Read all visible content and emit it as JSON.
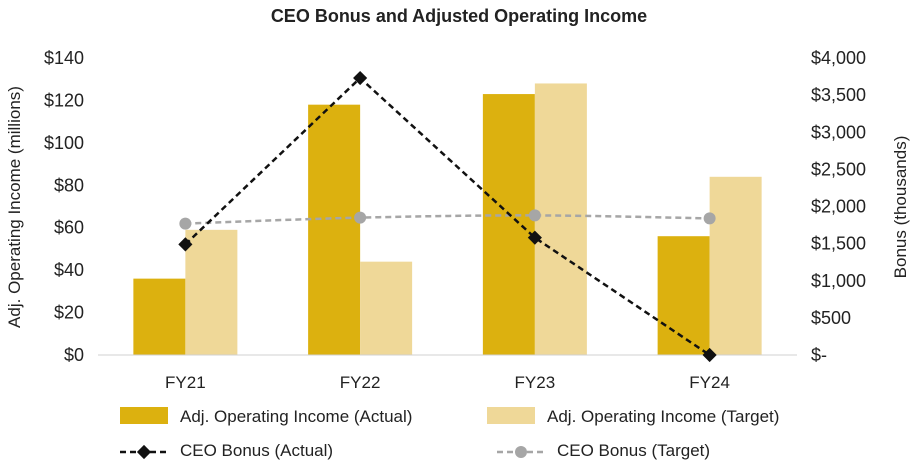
{
  "chart_data": {
    "type": "bar+line",
    "title": "CEO Bonus and Adjusted Operating Income",
    "categories": [
      "FY21",
      "FY22",
      "FY23",
      "FY24"
    ],
    "left_axis": {
      "label": "Adj. Operating Income (millions)",
      "range": [
        0,
        140
      ],
      "ticks": [
        0,
        20,
        40,
        60,
        80,
        100,
        120,
        140
      ],
      "tick_labels": [
        "$0",
        "$20",
        "$40",
        "$60",
        "$80",
        "$100",
        "$120",
        "$140"
      ]
    },
    "right_axis": {
      "label": "Bonus (thousands)",
      "range": [
        0,
        4000
      ],
      "ticks": [
        0,
        500,
        1000,
        1500,
        2000,
        2500,
        3000,
        3500,
        4000
      ],
      "tick_labels": [
        "$-",
        "$500",
        "$1,000",
        "$1,500",
        "$2,000",
        "$2,500",
        "$3,000",
        "$3,500",
        "$4,000"
      ]
    },
    "bar_series": [
      {
        "name": "Adj. Operating Income (Actual)",
        "color": "#DCB10F",
        "values": [
          36,
          118,
          123,
          56
        ]
      },
      {
        "name": "Adj. Operating Income (Target)",
        "color": "#EFD898",
        "values": [
          59,
          44,
          128,
          84
        ]
      }
    ],
    "line_series": [
      {
        "name": "CEO Bonus (Actual)",
        "color": "#111111",
        "marker": "diamond",
        "dash": "dashed",
        "values": [
          1490,
          3730,
          1580,
          0
        ]
      },
      {
        "name": "CEO Bonus (Target)",
        "color": "#A6A6A6",
        "marker": "circle",
        "dash": "dashed",
        "values": [
          1770,
          1850,
          1880,
          1840
        ]
      }
    ],
    "legend_position": "bottom",
    "grid": false
  }
}
